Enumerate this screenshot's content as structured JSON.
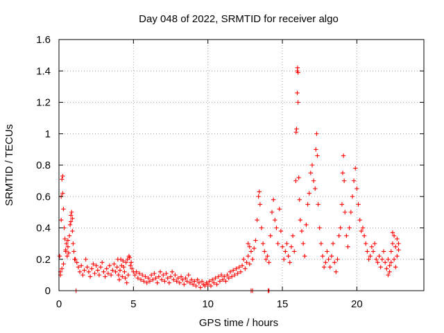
{
  "chart_data": {
    "type": "scatter",
    "title": "Day 048 of 2022, SRMTID for receiver algo",
    "xlabel": "GPS time / hours",
    "ylabel": "SRMTID / TECUs",
    "xlim": [
      0,
      24.5
    ],
    "ylim": [
      0,
      1.6
    ],
    "xticks": [
      0,
      5,
      10,
      15,
      20
    ],
    "xtick_labels": [
      "0",
      "5",
      "10",
      "15",
      "20"
    ],
    "yticks": [
      0,
      0.2,
      0.4,
      0.6,
      0.8,
      1.0,
      1.2,
      1.4,
      1.6
    ],
    "ytick_labels": [
      "0",
      "0.2",
      "0.4",
      "0.6",
      "0.8",
      "1",
      "1.2",
      "1.4",
      "1.6"
    ],
    "grid": true,
    "marker": "+",
    "color": "#ff0000",
    "series": [
      {
        "name": "SRMTID",
        "points": [
          [
            0.05,
            0.22
          ],
          [
            0.1,
            0.12
          ],
          [
            0.15,
            0.45
          ],
          [
            0.2,
            0.71
          ],
          [
            0.25,
            0.62
          ],
          [
            0.3,
            0.52
          ],
          [
            0.35,
            0.4
          ],
          [
            0.4,
            0.33
          ],
          [
            0.45,
            0.25
          ],
          [
            0.5,
            0.3
          ],
          [
            0.55,
            0.22
          ],
          [
            0.6,
            0.28
          ],
          [
            0.65,
            0.24
          ],
          [
            0.7,
            0.35
          ],
          [
            0.75,
            0.42
          ],
          [
            0.8,
            0.48
          ],
          [
            0.85,
            0.5
          ],
          [
            0.9,
            0.38
          ],
          [
            0.95,
            0.3
          ],
          [
            1.0,
            0.25
          ],
          [
            0.1,
            0.1
          ],
          [
            0.2,
            0.14
          ],
          [
            0.3,
            0.17
          ],
          [
            0.25,
            0.73
          ],
          [
            0.15,
            0.6
          ],
          [
            0.45,
            0.26
          ],
          [
            0.6,
            0.32
          ],
          [
            0.8,
            0.44
          ],
          [
            0.9,
            0.46
          ],
          [
            1.05,
            0.2
          ],
          [
            1.1,
            0.2
          ],
          [
            1.2,
            0.18
          ],
          [
            1.3,
            0.15
          ],
          [
            1.4,
            0.12
          ],
          [
            1.5,
            0.16
          ],
          [
            1.6,
            0.1
          ],
          [
            1.7,
            0.13
          ],
          [
            1.8,
            0.2
          ],
          [
            1.9,
            0.15
          ],
          [
            2.0,
            0.12
          ],
          [
            2.1,
            0.09
          ],
          [
            2.2,
            0.14
          ],
          [
            2.3,
            0.17
          ],
          [
            2.4,
            0.11
          ],
          [
            2.5,
            0.16
          ],
          [
            2.6,
            0.13
          ],
          [
            2.7,
            0.1
          ],
          [
            2.8,
            0.15
          ],
          [
            2.9,
            0.18
          ],
          [
            3.0,
            0.12
          ],
          [
            3.1,
            0.09
          ],
          [
            3.2,
            0.14
          ],
          [
            3.3,
            0.11
          ],
          [
            3.4,
            0.16
          ],
          [
            3.5,
            0.1
          ],
          [
            3.6,
            0.13
          ],
          [
            3.7,
            0.17
          ],
          [
            3.8,
            0.12
          ],
          [
            3.9,
            0.15
          ],
          [
            4.0,
            0.1
          ],
          [
            4.1,
            0.13
          ],
          [
            4.2,
            0.16
          ],
          [
            4.3,
            0.19
          ],
          [
            4.4,
            0.12
          ],
          [
            4.5,
            0.18
          ],
          [
            4.6,
            0.2
          ],
          [
            4.7,
            0.22
          ],
          [
            4.8,
            0.16
          ],
          [
            4.9,
            0.14
          ],
          [
            5.0,
            0.12
          ],
          [
            4.45,
            0.08
          ],
          [
            4.55,
            0.05
          ],
          [
            4.65,
            0.1
          ],
          [
            4.75,
            0.21
          ],
          [
            4.85,
            0.18
          ],
          [
            4.35,
            0.15
          ],
          [
            4.25,
            0.09
          ],
          [
            4.15,
            0.2
          ],
          [
            4.05,
            0.07
          ],
          [
            3.95,
            0.2
          ],
          [
            5.1,
            0.1
          ],
          [
            5.2,
            0.12
          ],
          [
            5.3,
            0.08
          ],
          [
            5.4,
            0.11
          ],
          [
            5.5,
            0.07
          ],
          [
            5.6,
            0.1
          ],
          [
            5.7,
            0.06
          ],
          [
            5.8,
            0.09
          ],
          [
            5.9,
            0.05
          ],
          [
            6.0,
            0.08
          ],
          [
            6.1,
            0.06
          ],
          [
            6.2,
            0.1
          ],
          [
            6.3,
            0.07
          ],
          [
            6.4,
            0.11
          ],
          [
            6.5,
            0.08
          ],
          [
            6.6,
            0.05
          ],
          [
            6.7,
            0.09
          ],
          [
            6.8,
            0.12
          ],
          [
            6.9,
            0.07
          ],
          [
            7.0,
            0.1
          ],
          [
            7.1,
            0.06
          ],
          [
            7.2,
            0.11
          ],
          [
            7.3,
            0.08
          ],
          [
            7.4,
            0.05
          ],
          [
            7.5,
            0.09
          ],
          [
            7.6,
            0.12
          ],
          [
            7.7,
            0.07
          ],
          [
            7.8,
            0.1
          ],
          [
            7.9,
            0.06
          ],
          [
            8.0,
            0.08
          ],
          [
            8.1,
            0.05
          ],
          [
            8.2,
            0.09
          ],
          [
            8.3,
            0.07
          ],
          [
            8.4,
            0.04
          ],
          [
            8.5,
            0.08
          ],
          [
            8.6,
            0.06
          ],
          [
            8.7,
            0.1
          ],
          [
            8.8,
            0.05
          ],
          [
            8.9,
            0.07
          ],
          [
            9.0,
            0.04
          ],
          [
            9.1,
            0.06
          ],
          [
            9.2,
            0.03
          ],
          [
            9.3,
            0.07
          ],
          [
            9.4,
            0.05
          ],
          [
            9.5,
            0.02
          ],
          [
            9.6,
            0.06
          ],
          [
            9.7,
            0.04
          ],
          [
            9.8,
            0.03
          ],
          [
            9.9,
            0.05
          ],
          [
            10.0,
            0.04
          ],
          [
            10.1,
            0.06
          ],
          [
            10.2,
            0.03
          ],
          [
            10.3,
            0.07
          ],
          [
            10.4,
            0.05
          ],
          [
            10.5,
            0.08
          ],
          [
            10.6,
            0.04
          ],
          [
            10.7,
            0.09
          ],
          [
            10.8,
            0.06
          ],
          [
            10.9,
            0.1
          ],
          [
            11.0,
            0.07
          ],
          [
            11.1,
            0.09
          ],
          [
            11.2,
            0.06
          ],
          [
            11.3,
            0.1
          ],
          [
            11.4,
            0.08
          ],
          [
            11.5,
            0.12
          ],
          [
            11.6,
            0.09
          ],
          [
            11.7,
            0.13
          ],
          [
            11.8,
            0.1
          ],
          [
            11.9,
            0.14
          ],
          [
            12.0,
            0.11
          ],
          [
            12.1,
            0.15
          ],
          [
            12.2,
            0.12
          ],
          [
            12.3,
            0.16
          ],
          [
            12.4,
            0.2
          ],
          [
            12.5,
            0.14
          ],
          [
            12.6,
            0.18
          ],
          [
            12.7,
            0.22
          ],
          [
            12.8,
            0.17
          ],
          [
            12.9,
            0.25
          ],
          [
            13.0,
            0.2
          ],
          [
            12.7,
            0.3
          ],
          [
            12.8,
            0.28
          ],
          [
            13.1,
            0.27
          ],
          [
            13.2,
            0.32
          ],
          [
            13.3,
            0.45
          ],
          [
            13.4,
            0.6
          ],
          [
            13.45,
            0.63
          ],
          [
            13.5,
            0.55
          ],
          [
            13.6,
            0.4
          ],
          [
            13.7,
            0.3
          ],
          [
            13.8,
            0.25
          ],
          [
            13.9,
            0.2
          ],
          [
            14.0,
            0.22
          ],
          [
            14.1,
            0.18
          ],
          [
            14.2,
            0.35
          ],
          [
            14.3,
            0.5
          ],
          [
            14.4,
            0.58
          ],
          [
            14.5,
            0.45
          ],
          [
            14.6,
            0.4
          ],
          [
            14.7,
            0.3
          ],
          [
            14.8,
            0.52
          ],
          [
            14.9,
            0.38
          ],
          [
            15.0,
            0.28
          ],
          [
            15.1,
            0.2
          ],
          [
            15.2,
            0.25
          ],
          [
            15.3,
            0.3
          ],
          [
            15.4,
            0.22
          ],
          [
            15.5,
            0.18
          ],
          [
            15.6,
            0.28
          ],
          [
            15.7,
            0.35
          ],
          [
            15.8,
            0.25
          ],
          [
            15.9,
            0.7
          ],
          [
            15.95,
            1.03
          ],
          [
            16.0,
            1.4
          ],
          [
            16.02,
            1.42
          ],
          [
            16.05,
            1.2
          ],
          [
            16.1,
            0.72
          ],
          [
            16.15,
            0.58
          ],
          [
            16.2,
            0.45
          ],
          [
            16.3,
            0.38
          ],
          [
            16.0,
            1.26
          ],
          [
            16.05,
            1.39
          ],
          [
            15.92,
            1.01
          ],
          [
            16.4,
            0.3
          ],
          [
            16.5,
            0.22
          ],
          [
            16.6,
            0.42
          ],
          [
            16.7,
            0.55
          ],
          [
            16.8,
            0.62
          ],
          [
            16.9,
            0.75
          ],
          [
            17.0,
            0.8
          ],
          [
            17.1,
            0.7
          ],
          [
            17.2,
            0.65
          ],
          [
            17.25,
            0.9
          ],
          [
            17.3,
            1.0
          ],
          [
            17.35,
            0.86
          ],
          [
            17.4,
            0.55
          ],
          [
            17.5,
            0.4
          ],
          [
            17.6,
            0.3
          ],
          [
            17.7,
            0.22
          ],
          [
            17.8,
            0.15
          ],
          [
            17.9,
            0.18
          ],
          [
            18.0,
            0.25
          ],
          [
            18.1,
            0.2
          ],
          [
            18.2,
            0.15
          ],
          [
            18.3,
            0.22
          ],
          [
            18.4,
            0.3
          ],
          [
            18.5,
            0.18
          ],
          [
            18.6,
            0.12
          ],
          [
            18.7,
            0.2
          ],
          [
            18.8,
            0.35
          ],
          [
            18.9,
            0.4
          ],
          [
            19.0,
            0.55
          ],
          [
            19.05,
            0.75
          ],
          [
            19.1,
            0.86
          ],
          [
            19.15,
            0.7
          ],
          [
            19.2,
            0.5
          ],
          [
            19.3,
            0.35
          ],
          [
            19.4,
            0.28
          ],
          [
            19.5,
            0.4
          ],
          [
            19.6,
            0.5
          ],
          [
            19.7,
            0.6
          ],
          [
            19.8,
            0.7
          ],
          [
            19.9,
            0.78
          ],
          [
            20.0,
            0.65
          ],
          [
            20.1,
            0.55
          ],
          [
            20.2,
            0.45
          ],
          [
            20.3,
            0.38
          ],
          [
            20.4,
            0.4
          ],
          [
            20.5,
            0.35
          ],
          [
            20.6,
            0.3
          ],
          [
            20.7,
            0.25
          ],
          [
            20.8,
            0.2
          ],
          [
            20.9,
            0.22
          ],
          [
            21.0,
            0.28
          ],
          [
            21.1,
            0.25
          ],
          [
            21.2,
            0.3
          ],
          [
            21.3,
            0.2
          ],
          [
            21.4,
            0.18
          ],
          [
            21.5,
            0.22
          ],
          [
            21.6,
            0.15
          ],
          [
            21.7,
            0.2
          ],
          [
            21.8,
            0.25
          ],
          [
            21.9,
            0.18
          ],
          [
            22.0,
            0.14
          ],
          [
            22.1,
            0.2
          ],
          [
            22.2,
            0.16
          ],
          [
            22.3,
            0.25
          ],
          [
            22.4,
            0.3
          ],
          [
            22.5,
            0.35
          ],
          [
            22.6,
            0.28
          ],
          [
            22.7,
            0.33
          ],
          [
            22.8,
            0.3
          ],
          [
            22.5,
            0.2
          ],
          [
            22.6,
            0.15
          ],
          [
            22.7,
            0.22
          ],
          [
            22.8,
            0.26
          ],
          [
            22.4,
            0.37
          ],
          [
            22.3,
            0.18
          ],
          [
            22.2,
            0.12
          ],
          [
            22.1,
            0.1
          ],
          [
            1.15,
            0.0
          ],
          [
            12.9,
            0.0
          ],
          [
            13.0,
            0.0
          ],
          [
            14.05,
            0.0
          ],
          [
            14.1,
            0.0
          ]
        ]
      }
    ]
  }
}
